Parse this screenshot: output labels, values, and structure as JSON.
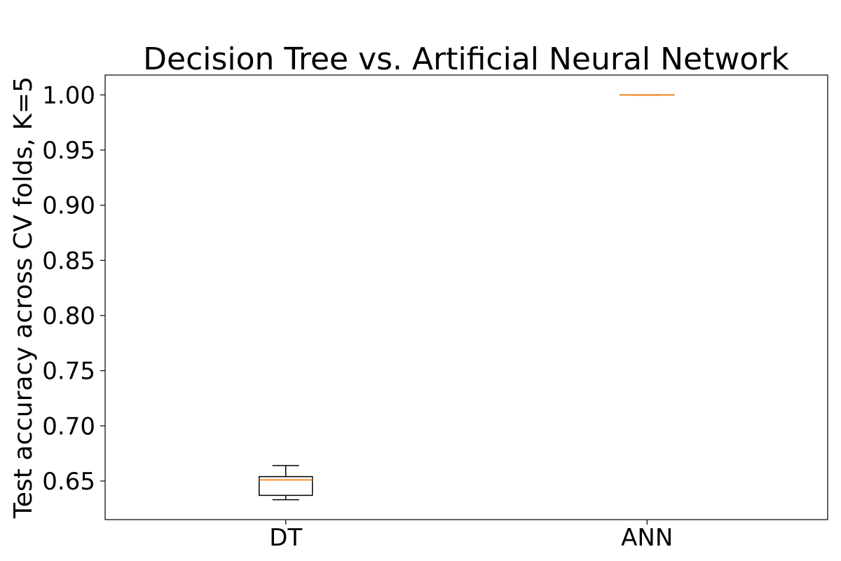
{
  "chart_data": {
    "type": "box",
    "title": "Decision Tree vs. Artificial Neural Network",
    "xlabel": "",
    "ylabel": "Test accuracy across CV folds, K=5",
    "ylim": [
      0.615,
      1.018
    ],
    "yticks": [
      0.65,
      0.7,
      0.75,
      0.8,
      0.85,
      0.9,
      0.95,
      1.0
    ],
    "ytick_labels": [
      "0.65",
      "0.70",
      "0.75",
      "0.80",
      "0.85",
      "0.90",
      "0.95",
      "1.00"
    ],
    "categories": [
      "DT",
      "ANN"
    ],
    "boxes": [
      {
        "label": "DT",
        "whisker_low": 0.633,
        "q1": 0.637,
        "median": 0.651,
        "q3": 0.654,
        "whisker_high": 0.664
      },
      {
        "label": "ANN",
        "whisker_low": 1.0,
        "q1": 1.0,
        "median": 1.0,
        "q3": 1.0,
        "whisker_high": 1.0
      }
    ],
    "grid": false,
    "colors": {
      "box": "#000000",
      "median": "#ff7f0e"
    }
  }
}
